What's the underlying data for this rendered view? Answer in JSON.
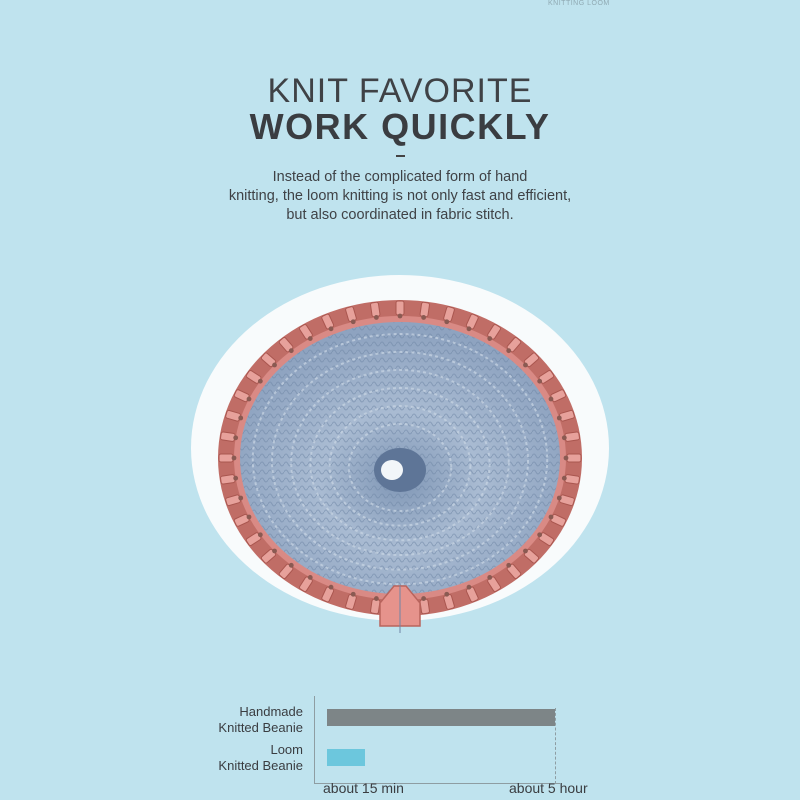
{
  "watermark": "KNITTING LOOM",
  "headline": "KNIT FAVORITE",
  "subheadline": "WORK QUICKLY",
  "description": [
    "Instead of the complicated form of hand",
    "knitting, the loom knitting is not only fast and efficient,",
    "but also coordinated in fabric stitch."
  ],
  "colors": {
    "background": "#bfe3ee",
    "loom_pink": "#d98a85",
    "yarn_blue": "#9cb0c9",
    "bar_handmade": "#7d8587",
    "bar_loom": "#6cc7dd"
  },
  "chart_data": {
    "type": "bar",
    "orientation": "horizontal",
    "categories": [
      "Handmade Knitted Beanie",
      "Loom Knitted Beanie"
    ],
    "category_lines": [
      [
        "Handmade",
        "Knitted Beanie"
      ],
      [
        "Loom",
        "Knitted Beanie"
      ]
    ],
    "values": [
      300,
      15
    ],
    "unit": "min",
    "x_ticks": [
      {
        "value": 15,
        "label": "about 15 min"
      },
      {
        "value": 300,
        "label": "about 5 hour"
      }
    ],
    "xlim": [
      0,
      300
    ],
    "title": "",
    "xlabel": "",
    "ylabel": "",
    "grid": false
  }
}
